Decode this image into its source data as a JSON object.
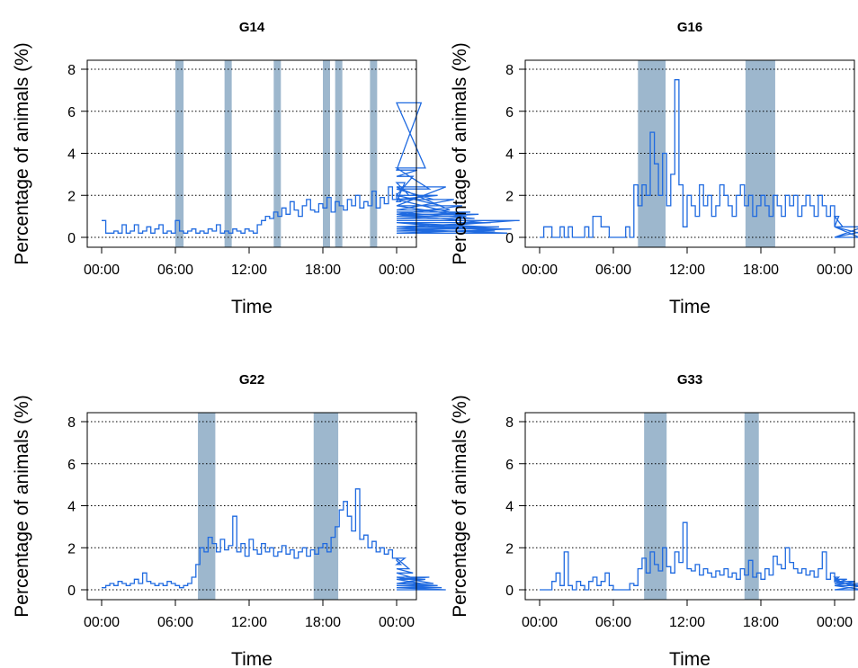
{
  "colors": {
    "line": "#1f6ae0",
    "band": "#9db7cd",
    "grid": "#000000",
    "frame": "#000000"
  },
  "chart_data": [
    {
      "type": "line",
      "title": "G14",
      "xlabel": "Time",
      "ylabel": "Percentage of animals (%)",
      "xlim": [
        "00:00",
        "24:00"
      ],
      "ylim": [
        0,
        8
      ],
      "x_ticks": [
        "00:00",
        "06:00",
        "12:00",
        "18:00",
        "00:00"
      ],
      "y_ticks": [
        0,
        2,
        4,
        6,
        8
      ],
      "grid": "horizontal-dotted",
      "highlight_bands": [
        [
          "06:00",
          "06:40"
        ],
        [
          "10:00",
          "10:35"
        ],
        [
          "14:00",
          "14:35"
        ],
        [
          "18:00",
          "18:35"
        ],
        [
          "19:00",
          "19:35"
        ],
        [
          "21:50",
          "22:25"
        ]
      ],
      "series": [
        {
          "sample_interval_min": 20,
          "values": [
            0.8,
            0.2,
            0.2,
            0.3,
            0.2,
            0.6,
            0.2,
            0.3,
            0.6,
            0.2,
            0.3,
            0.5,
            0.2,
            0.4,
            0.6,
            0.2,
            0.3,
            0.2,
            0.8,
            0.3,
            0.2,
            0.3,
            0.4,
            0.2,
            0.3,
            0.2,
            0.4,
            0.3,
            0.6,
            0.2,
            0.3,
            0.2,
            0.4,
            0.3,
            0.2,
            0.4,
            0.3,
            0.2,
            0.6,
            0.8,
            1.0,
            0.9,
            1.2,
            1.0,
            1.4,
            1.1,
            1.7,
            1.3,
            1.0,
            1.5,
            1.8,
            1.3,
            1.2,
            1.6,
            1.4,
            1.9,
            1.2,
            1.7,
            1.5,
            1.3,
            1.8,
            1.5,
            2.0,
            1.4,
            1.7,
            1.5,
            2.2,
            1.4,
            1.9,
            1.6,
            2.4,
            1.8,
            2.1,
            1.7,
            2.6,
            2.0,
            2.9,
            3.2,
            6.4,
            3.3,
            2.3,
            1.8,
            2.0,
            1.5,
            2.4,
            1.3,
            1.8,
            1.1,
            1.5,
            1.0,
            1.2,
            0.9,
            1.1,
            0.7,
            0.5,
            0.7,
            0.3,
            0.5,
            0.4,
            0.2,
            0.4,
            0.8,
            0.8
          ]
        }
      ]
    },
    {
      "type": "line",
      "title": "G16",
      "xlabel": "Time",
      "ylabel": "Percentage of animals (%)",
      "xlim": [
        "00:00",
        "24:00"
      ],
      "ylim": [
        0,
        8
      ],
      "x_ticks": [
        "00:00",
        "06:00",
        "12:00",
        "18:00",
        "00:00"
      ],
      "y_ticks": [
        0,
        2,
        4,
        6,
        8
      ],
      "grid": "horizontal-dotted",
      "highlight_bands": [
        [
          "08:00",
          "10:15"
        ],
        [
          "16:45",
          "19:10"
        ]
      ],
      "series": [
        {
          "sample_interval_min": 20,
          "values": [
            0.0,
            0.5,
            0.5,
            0.0,
            0.0,
            0.5,
            0.0,
            0.5,
            0.0,
            0.0,
            0.0,
            0.5,
            0.0,
            1.0,
            1.0,
            0.5,
            0.5,
            0.0,
            0.0,
            0.0,
            0.0,
            0.5,
            0.0,
            2.5,
            1.5,
            2.5,
            2.0,
            5.0,
            3.5,
            2.0,
            4.0,
            1.5,
            3.0,
            7.5,
            2.5,
            0.5,
            2.0,
            1.5,
            1.0,
            2.5,
            1.5,
            2.0,
            1.0,
            1.5,
            2.5,
            2.0,
            1.5,
            1.0,
            2.0,
            2.5,
            1.5,
            2.0,
            1.0,
            1.5,
            2.0,
            1.5,
            1.0,
            2.0,
            1.5,
            1.0,
            2.0,
            1.5,
            2.0,
            1.0,
            1.5,
            2.0,
            1.5,
            1.0,
            2.0,
            1.5,
            1.0,
            1.5,
            0.5,
            1.0,
            0.5,
            0.5,
            0.5,
            0.5,
            0.0,
            0.5,
            0.5,
            0.5,
            0.0,
            0.0,
            0.5
          ]
        }
      ]
    },
    {
      "type": "line",
      "title": "G22",
      "xlabel": "Time",
      "ylabel": "Percentage of animals (%)",
      "xlim": [
        "00:00",
        "24:00"
      ],
      "ylim": [
        0,
        8
      ],
      "x_ticks": [
        "00:00",
        "06:00",
        "12:00",
        "18:00",
        "00:00"
      ],
      "y_ticks": [
        0,
        2,
        4,
        6,
        8
      ],
      "grid": "horizontal-dotted",
      "highlight_bands": [
        [
          "07:50",
          "09:15"
        ],
        [
          "17:15",
          "19:15"
        ]
      ],
      "series": [
        {
          "sample_interval_min": 20,
          "values": [
            0.1,
            0.2,
            0.3,
            0.2,
            0.4,
            0.3,
            0.2,
            0.3,
            0.5,
            0.3,
            0.8,
            0.4,
            0.3,
            0.2,
            0.3,
            0.2,
            0.4,
            0.3,
            0.2,
            0.1,
            0.2,
            0.3,
            0.6,
            1.2,
            2.0,
            1.8,
            2.5,
            2.2,
            1.8,
            2.4,
            1.9,
            2.1,
            3.5,
            1.8,
            2.2,
            1.6,
            2.4,
            1.9,
            1.7,
            2.2,
            1.8,
            2.0,
            1.6,
            1.8,
            2.1,
            1.7,
            1.9,
            1.5,
            1.8,
            2.0,
            1.6,
            1.9,
            1.7,
            2.0,
            2.2,
            1.8,
            2.5,
            3.0,
            3.8,
            4.2,
            3.5,
            2.8,
            4.8,
            2.4,
            2.6,
            2.0,
            2.3,
            1.8,
            2.0,
            1.7,
            1.9,
            1.5,
            1.4,
            1.2,
            1.5,
            1.0,
            0.8,
            0.5,
            0.3,
            0.5,
            0.6,
            0.3,
            0.2,
            0.1,
            0.0
          ]
        }
      ]
    },
    {
      "type": "line",
      "title": "G33",
      "xlabel": "Time",
      "ylabel": "Percentage of animals (%)",
      "xlim": [
        "00:00",
        "24:00"
      ],
      "ylim": [
        0,
        8
      ],
      "x_ticks": [
        "00:00",
        "06:00",
        "12:00",
        "18:00",
        "00:00"
      ],
      "y_ticks": [
        0,
        2,
        4,
        6,
        8
      ],
      "grid": "horizontal-dotted",
      "highlight_bands": [
        [
          "08:30",
          "10:20"
        ],
        [
          "16:40",
          "17:50"
        ]
      ],
      "series": [
        {
          "sample_interval_min": 20,
          "values": [
            0.0,
            0.0,
            0.0,
            0.4,
            0.8,
            0.2,
            1.8,
            0.2,
            0.0,
            0.4,
            0.2,
            0.0,
            0.4,
            0.6,
            0.2,
            0.4,
            0.8,
            0.2,
            0.0,
            0.0,
            0.0,
            0.0,
            0.3,
            0.2,
            1.0,
            1.5,
            0.8,
            1.8,
            1.2,
            0.9,
            2.0,
            1.1,
            0.8,
            1.8,
            1.3,
            3.2,
            1.0,
            0.9,
            1.2,
            0.7,
            1.0,
            0.8,
            0.6,
            0.9,
            0.7,
            1.0,
            0.6,
            0.8,
            0.5,
            1.0,
            0.7,
            1.4,
            0.6,
            0.8,
            0.5,
            1.0,
            0.7,
            1.6,
            1.2,
            1.0,
            2.0,
            1.3,
            1.0,
            0.8,
            1.0,
            0.7,
            0.9,
            0.6,
            1.0,
            1.8,
            0.5,
            0.8,
            0.4,
            0.6,
            0.3,
            0.5,
            0.2,
            0.4,
            0.2,
            0.0,
            0.0,
            0.0,
            0.0,
            0.3,
            0.3
          ]
        }
      ]
    }
  ]
}
